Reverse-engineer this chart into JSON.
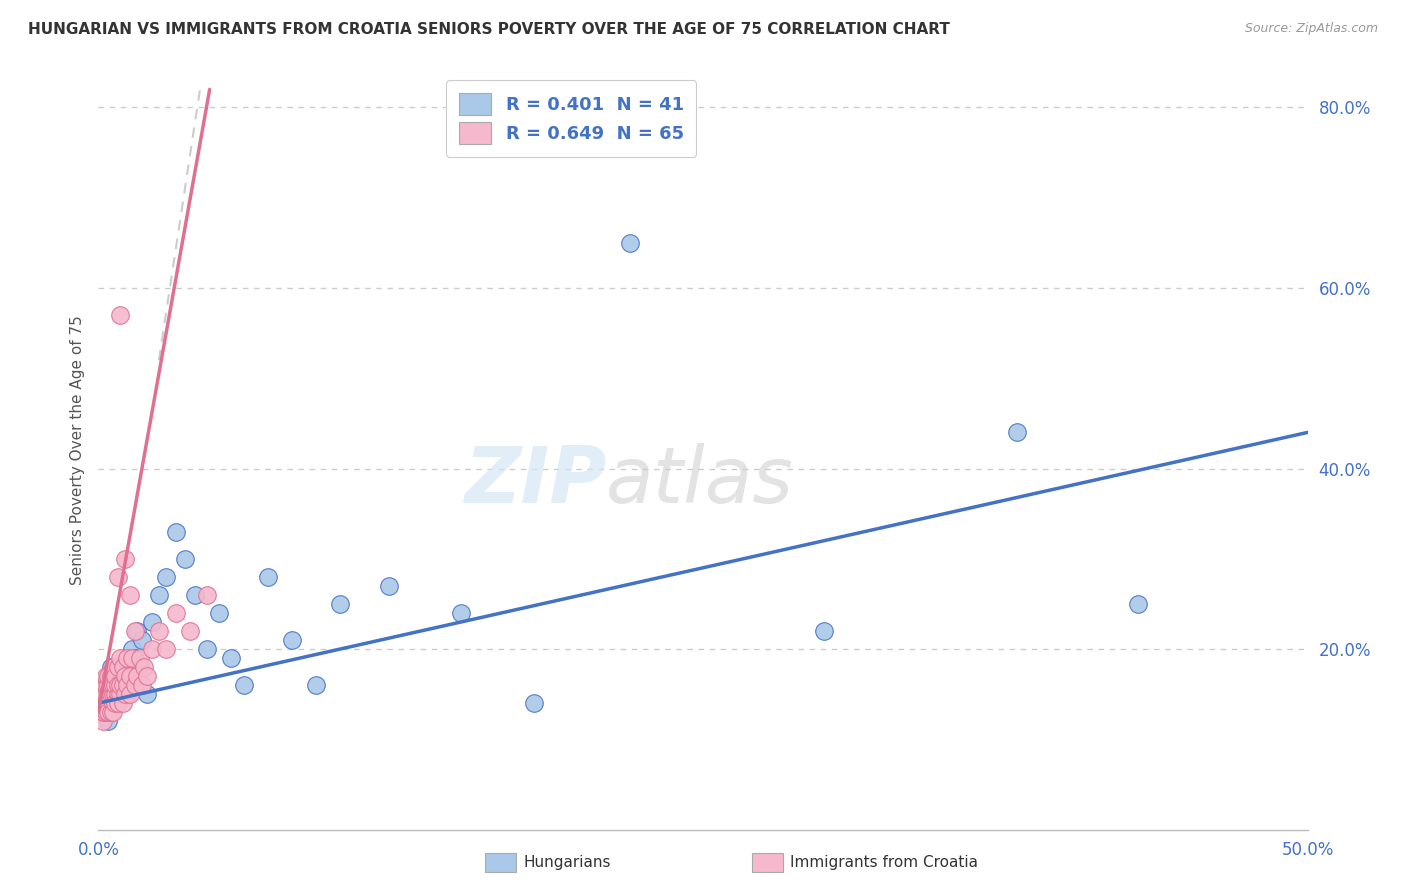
{
  "title": "HUNGARIAN VS IMMIGRANTS FROM CROATIA SENIORS POVERTY OVER THE AGE OF 75 CORRELATION CHART",
  "source": "Source: ZipAtlas.com",
  "ylabel": "Seniors Poverty Over the Age of 75",
  "xlim": [
    0.0,
    0.5
  ],
  "ylim": [
    0.0,
    0.84
  ],
  "xticks": [
    0.0,
    0.5
  ],
  "yticks": [
    0.2,
    0.4,
    0.6,
    0.8
  ],
  "R_hungarian": 0.401,
  "N_hungarian": 41,
  "R_croatia": 0.649,
  "N_croatia": 65,
  "color_hungarian": "#aac8e8",
  "color_croatia": "#f5b8cc",
  "color_line_hungarian": "#4472c4",
  "color_line_croatia": "#e07090",
  "background_color": "#ffffff",
  "tick_color": "#4472c4",
  "grid_color": "#cccccc",
  "hungarian_x": [
    0.001,
    0.002,
    0.003,
    0.004,
    0.004,
    0.005,
    0.006,
    0.007,
    0.008,
    0.009,
    0.01,
    0.011,
    0.012,
    0.013,
    0.014,
    0.015,
    0.016,
    0.017,
    0.018,
    0.02,
    0.022,
    0.025,
    0.028,
    0.032,
    0.036,
    0.04,
    0.045,
    0.05,
    0.055,
    0.06,
    0.07,
    0.08,
    0.09,
    0.1,
    0.12,
    0.15,
    0.18,
    0.22,
    0.3,
    0.38,
    0.43
  ],
  "hungarian_y": [
    0.13,
    0.15,
    0.14,
    0.16,
    0.12,
    0.18,
    0.14,
    0.16,
    0.15,
    0.17,
    0.16,
    0.18,
    0.15,
    0.17,
    0.2,
    0.19,
    0.22,
    0.18,
    0.21,
    0.15,
    0.23,
    0.26,
    0.28,
    0.33,
    0.3,
    0.26,
    0.2,
    0.24,
    0.19,
    0.16,
    0.28,
    0.21,
    0.16,
    0.25,
    0.27,
    0.24,
    0.14,
    0.65,
    0.22,
    0.44,
    0.25
  ],
  "croatia_x": [
    0.001,
    0.001,
    0.001,
    0.002,
    0.002,
    0.002,
    0.002,
    0.002,
    0.003,
    0.003,
    0.003,
    0.003,
    0.003,
    0.004,
    0.004,
    0.004,
    0.004,
    0.004,
    0.005,
    0.005,
    0.005,
    0.005,
    0.006,
    0.006,
    0.006,
    0.006,
    0.006,
    0.007,
    0.007,
    0.007,
    0.007,
    0.008,
    0.008,
    0.008,
    0.008,
    0.009,
    0.009,
    0.009,
    0.01,
    0.01,
    0.01,
    0.011,
    0.011,
    0.012,
    0.012,
    0.013,
    0.013,
    0.014,
    0.015,
    0.016,
    0.017,
    0.018,
    0.019,
    0.02,
    0.022,
    0.025,
    0.028,
    0.032,
    0.038,
    0.045,
    0.009,
    0.011,
    0.013,
    0.015,
    0.008
  ],
  "croatia_y": [
    0.13,
    0.14,
    0.15,
    0.12,
    0.14,
    0.15,
    0.16,
    0.13,
    0.14,
    0.15,
    0.16,
    0.13,
    0.17,
    0.14,
    0.15,
    0.16,
    0.13,
    0.17,
    0.15,
    0.16,
    0.13,
    0.17,
    0.14,
    0.15,
    0.16,
    0.18,
    0.13,
    0.15,
    0.16,
    0.17,
    0.14,
    0.15,
    0.16,
    0.18,
    0.14,
    0.15,
    0.16,
    0.19,
    0.14,
    0.16,
    0.18,
    0.15,
    0.17,
    0.16,
    0.19,
    0.15,
    0.17,
    0.19,
    0.16,
    0.17,
    0.19,
    0.16,
    0.18,
    0.17,
    0.2,
    0.22,
    0.2,
    0.24,
    0.22,
    0.26,
    0.57,
    0.3,
    0.26,
    0.22,
    0.28
  ],
  "croatia_trend_x0": 0.0,
  "croatia_trend_x1": 0.046,
  "croatia_trend_y0": 0.13,
  "croatia_trend_y1": 0.82,
  "hungarian_trend_x0": 0.0,
  "hungarian_trend_x1": 0.5,
  "hungarian_trend_y0": 0.14,
  "hungarian_trend_y1": 0.44
}
